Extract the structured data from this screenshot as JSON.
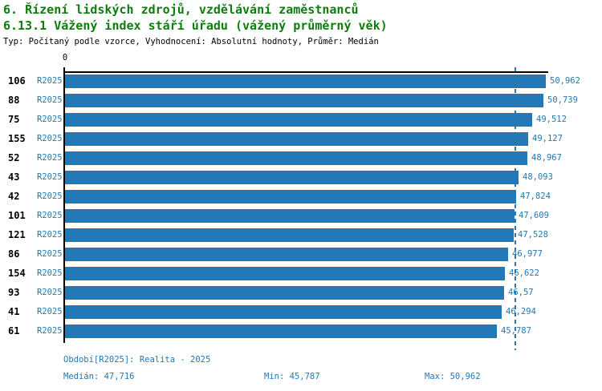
{
  "header": {
    "title": "6. Řízení lidských zdrojů, vzdělávání zaměstnanců",
    "subtitle": "6.13.1 Vážený index stáří úřadu (vážený průměrný věk)",
    "meta": "Typ: Počítaný podle vzorce, Vyhodnocení: Absolutní hodnoty, Průměr: Medián"
  },
  "axis": {
    "zero_label": "0"
  },
  "footer": {
    "period_note": "Období[R2025]: Realita - 2025",
    "median_label": "Medián: 47,716",
    "min_label": "Min: 45,787",
    "max_label": "Max: 50,962"
  },
  "colors": {
    "bar": "#2478b4",
    "blue_text": "#2478b4",
    "title_green": "#0e7c0e",
    "axis_black": "#000000"
  },
  "chart_data": {
    "type": "bar",
    "orientation": "horizontal",
    "title": "6.13.1 Vážený index stáří úřadu (vážený průměrný věk)",
    "section": "6. Řízení lidských zdrojů, vzdělávání zaměstnanců",
    "meta": "Typ: Počítaný podle vzorce, Vyhodnocení: Absolutní hodnoty, Průměr: Medián",
    "series_period": "R2025",
    "period_note": "Období[R2025]: Realita - 2025",
    "categories": [
      "106",
      "88",
      "75",
      "155",
      "52",
      "43",
      "42",
      "101",
      "121",
      "86",
      "154",
      "93",
      "41",
      "61"
    ],
    "values": [
      50.962,
      50.739,
      49.512,
      49.127,
      48.967,
      48.093,
      47.824,
      47.609,
      47.528,
      46.977,
      46.622,
      46.57,
      46.294,
      45.787
    ],
    "value_labels": [
      "50,962",
      "50,739",
      "49,512",
      "49,127",
      "48,967",
      "48,093",
      "47,824",
      "47,609",
      "47,528",
      "46,977",
      "46,622",
      "46,57",
      "46,294",
      "45,787"
    ],
    "median": 47.716,
    "min": 45.787,
    "max": 50.962,
    "xlim": [
      0,
      51.2
    ],
    "median_line": "dashed-blue",
    "grid": false,
    "legend": false,
    "rows": [
      {
        "id": "106",
        "period": "R2025",
        "value": 50.962,
        "label": "50,962"
      },
      {
        "id": "88",
        "period": "R2025",
        "value": 50.739,
        "label": "50,739"
      },
      {
        "id": "75",
        "period": "R2025",
        "value": 49.512,
        "label": "49,512"
      },
      {
        "id": "155",
        "period": "R2025",
        "value": 49.127,
        "label": "49,127"
      },
      {
        "id": "52",
        "period": "R2025",
        "value": 48.967,
        "label": "48,967"
      },
      {
        "id": "43",
        "period": "R2025",
        "value": 48.093,
        "label": "48,093"
      },
      {
        "id": "42",
        "period": "R2025",
        "value": 47.824,
        "label": "47,824"
      },
      {
        "id": "101",
        "period": "R2025",
        "value": 47.609,
        "label": "47,609"
      },
      {
        "id": "121",
        "period": "R2025",
        "value": 47.528,
        "label": "47,528"
      },
      {
        "id": "86",
        "period": "R2025",
        "value": 46.977,
        "label": "46,977"
      },
      {
        "id": "154",
        "period": "R2025",
        "value": 46.622,
        "label": "46,622"
      },
      {
        "id": "93",
        "period": "R2025",
        "value": 46.57,
        "label": "46,57"
      },
      {
        "id": "41",
        "period": "R2025",
        "value": 46.294,
        "label": "46,294"
      },
      {
        "id": "61",
        "period": "R2025",
        "value": 45.787,
        "label": "45,787"
      }
    ]
  }
}
